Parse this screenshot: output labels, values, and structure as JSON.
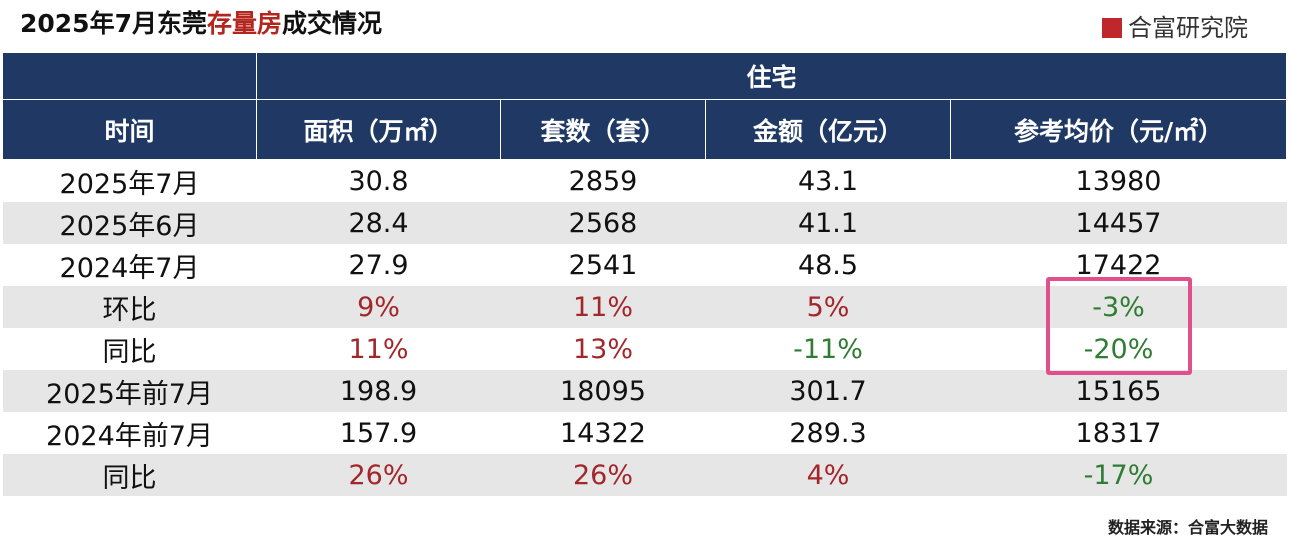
{
  "header": {
    "title_parts": [
      "2025年7月东莞",
      "存量房",
      "成交情况"
    ],
    "logo": "合富研究院"
  },
  "table": {
    "group": "住宅",
    "columns": [
      "时间",
      "面积（万㎡）",
      "套数（套）",
      "金额（亿元）",
      "参考均价（元/㎡）"
    ],
    "rows": [
      [
        "2025年7月",
        "30.8",
        "2859",
        "43.1",
        "13980"
      ],
      [
        "2025年6月",
        "28.4",
        "2568",
        "41.1",
        "14457"
      ],
      [
        "2024年7月",
        "27.9",
        "2541",
        "48.5",
        "17422"
      ],
      [
        "环比",
        "9%",
        "11%",
        "5%",
        "-3%"
      ],
      [
        "同比",
        "11%",
        "13%",
        "-11%",
        "-20%"
      ],
      [
        "2025年前7月",
        "198.9",
        "18095",
        "301.7",
        "15165"
      ],
      [
        "2024年前7月",
        "157.9",
        "14322",
        "289.3",
        "18317"
      ],
      [
        "同比",
        "26%",
        "26%",
        "4%",
        "-17%"
      ]
    ]
  },
  "footer": {
    "source": "数据来源：合富大数据"
  }
}
